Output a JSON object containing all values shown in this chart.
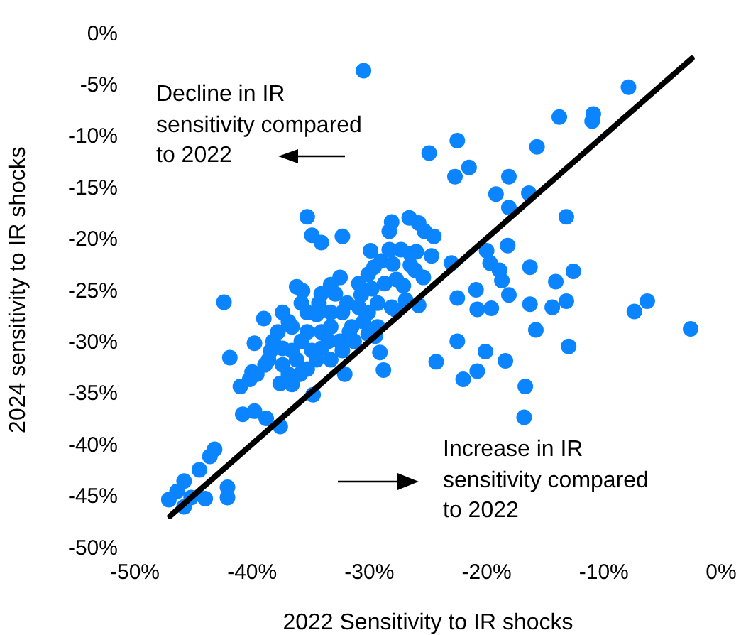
{
  "chart_data": {
    "type": "scatter",
    "xlabel": "2022 Sensitivity to IR shocks",
    "ylabel": "2024 sensitivity to IR shocks",
    "annotations": [
      "Decline in IR sensitivity compared to 2022",
      "Increase in IR sensitivity compared to 2022"
    ],
    "xlim": [
      -50,
      0
    ],
    "ylim": [
      -50,
      0
    ],
    "xticks": [
      {
        "value": -50,
        "label": "-50%"
      },
      {
        "value": -40,
        "label": "-40%"
      },
      {
        "value": -30,
        "label": "-30%"
      },
      {
        "value": -20,
        "label": "-20%"
      },
      {
        "value": -10,
        "label": "-10%"
      },
      {
        "value": 0,
        "label": "0%"
      }
    ],
    "yticks": [
      {
        "value": -50,
        "label": "-50%"
      },
      {
        "value": -45,
        "label": "-45%"
      },
      {
        "value": -40,
        "label": "-40%"
      },
      {
        "value": -35,
        "label": "-35%"
      },
      {
        "value": -30,
        "label": "-30%"
      },
      {
        "value": -25,
        "label": "-25%"
      },
      {
        "value": -20,
        "label": "-20%"
      },
      {
        "value": -15,
        "label": "-15%"
      },
      {
        "value": -10,
        "label": "-10%"
      },
      {
        "value": -5,
        "label": "-5%"
      },
      {
        "value": 0,
        "label": "0%"
      }
    ],
    "grid": false,
    "marker": "circle",
    "series": [
      {
        "color": "#0a84ff",
        "x": [
          -30.5,
          -7.9,
          -13.8,
          -10.9,
          -11.0,
          -22.5,
          -24.9,
          -15.7,
          -21.5,
          -22.7,
          -18.1,
          -19.2,
          -16.4,
          -18.1,
          -13.2,
          -35.3,
          -34.9,
          -34.1,
          -32.3,
          -26.6,
          -25.8,
          -25.3,
          -24.5,
          -28.1,
          -28.3,
          -18.2,
          -20.0,
          -19.7,
          -18.9,
          -18.7,
          -16.3,
          -12.6,
          -14.1,
          -23.0,
          -24.7,
          -22.5,
          -20.9,
          -20.8,
          -19.6,
          -18.1,
          -16.3,
          -14.4,
          -13.2,
          -15.8,
          -7.4,
          -6.3,
          -2.6,
          -13.0,
          -22.5,
          -20.1,
          -18.4,
          -24.3,
          -22.0,
          -20.8,
          -16.7,
          -16.8,
          -25.8,
          -26.9,
          -27.1,
          -25.4,
          -26.0,
          -27.3,
          -28.3,
          -29.9,
          -29.6,
          -29.0,
          -28.0,
          -26.5,
          -28.7,
          -27.7,
          -29.8,
          -30.7,
          -29.3,
          -30.1,
          -27.7,
          -29.1,
          -28.8,
          -32.1,
          -34.8,
          -29.5,
          -31.5,
          -32.5,
          -33.3,
          -32.3,
          -30.5,
          -31.9,
          -32.5,
          -33.3,
          -34.1,
          -32.9,
          -34.5,
          -35.8,
          -36.2,
          -35.7,
          -37.4,
          -39.0,
          -36.6,
          -35.3,
          -34.1,
          -34.9,
          -36.2,
          -37.4,
          -38.2,
          -39.8,
          -38.4,
          -36.9,
          -35.3,
          -37.6,
          -36.6,
          -38.9,
          -40.0,
          -40.2,
          -41.0,
          -41.9,
          -42.4,
          -40.8,
          -39.8,
          -38.8,
          -37.6,
          -43.2,
          -43.6,
          -44.5,
          -45.8,
          -46.4,
          -47.1,
          -45.8,
          -45.2,
          -44.0,
          -42.1,
          -42.1,
          -31.7,
          -33.3,
          -31.3,
          -34.1,
          -35.8,
          -36.6,
          -37.8,
          -36.9,
          -35.3,
          -34.3,
          -33.3,
          -32.3,
          -30.1,
          -30.9,
          -29.3,
          -28.1,
          -26.1,
          -26.5,
          -30.9,
          -30.1,
          -33.5,
          -34.5,
          -35.9,
          -37.4,
          -38.6,
          -39.6
        ],
        "values": [
          -3.7,
          -5.3,
          -8.2,
          -7.9,
          -8.6,
          -10.5,
          -11.7,
          -11.1,
          -13.1,
          -14.0,
          -14.0,
          -15.7,
          -15.6,
          -17.0,
          -17.9,
          -17.9,
          -19.7,
          -20.4,
          -19.8,
          -18.0,
          -18.5,
          -19.3,
          -19.8,
          -18.4,
          -19.3,
          -20.7,
          -21.2,
          -22.4,
          -23.1,
          -24.1,
          -22.8,
          -23.2,
          -24.2,
          -22.4,
          -21.7,
          -25.8,
          -25.0,
          -26.9,
          -26.8,
          -25.5,
          -26.4,
          -26.7,
          -26.1,
          -28.9,
          -27.1,
          -26.1,
          -28.8,
          -30.5,
          -30.0,
          -31.0,
          -31.9,
          -32.0,
          -33.7,
          -32.9,
          -34.4,
          -37.4,
          -26.5,
          -26.0,
          -24.6,
          -23.8,
          -21.3,
          -21.1,
          -21.1,
          -21.2,
          -22.8,
          -22.2,
          -22.5,
          -22.6,
          -24.4,
          -24.0,
          -24.9,
          -25.5,
          -26.3,
          -27.2,
          -27.0,
          -31.1,
          -32.8,
          -33.2,
          -35.2,
          -29.5,
          -28.6,
          -30.0,
          -31.8,
          -30.9,
          -28.1,
          -26.3,
          -23.8,
          -24.5,
          -25.4,
          -25.4,
          -27.4,
          -26.3,
          -24.7,
          -25.1,
          -27.2,
          -27.8,
          -28.6,
          -29.1,
          -29.1,
          -30.9,
          -31.8,
          -30.7,
          -30.0,
          -30.2,
          -30.9,
          -33.2,
          -32.7,
          -34.1,
          -34.2,
          -32.3,
          -33.0,
          -33.7,
          -34.4,
          -31.6,
          -26.2,
          -37.1,
          -36.8,
          -37.5,
          -38.3,
          -40.5,
          -41.2,
          -42.5,
          -43.6,
          -44.6,
          -45.4,
          -46.1,
          -45.2,
          -45.3,
          -44.2,
          -45.2,
          -29.1,
          -28.6,
          -30.0,
          -30.7,
          -30.0,
          -30.9,
          -29.1,
          -28.1,
          -27.2,
          -26.3,
          -27.2,
          -27.2,
          -29.3,
          -26.7,
          -28.6,
          -26.7,
          -23.1,
          -21.5,
          -24.4,
          -23.5,
          -30.0,
          -31.8,
          -33.2,
          -32.3,
          -31.8,
          -33.2
        ]
      },
      {
        "type": "line",
        "marker": "none",
        "color": "#000000",
        "x": [
          -47,
          -2.5
        ],
        "values": [
          -47,
          -2.5
        ]
      }
    ]
  }
}
